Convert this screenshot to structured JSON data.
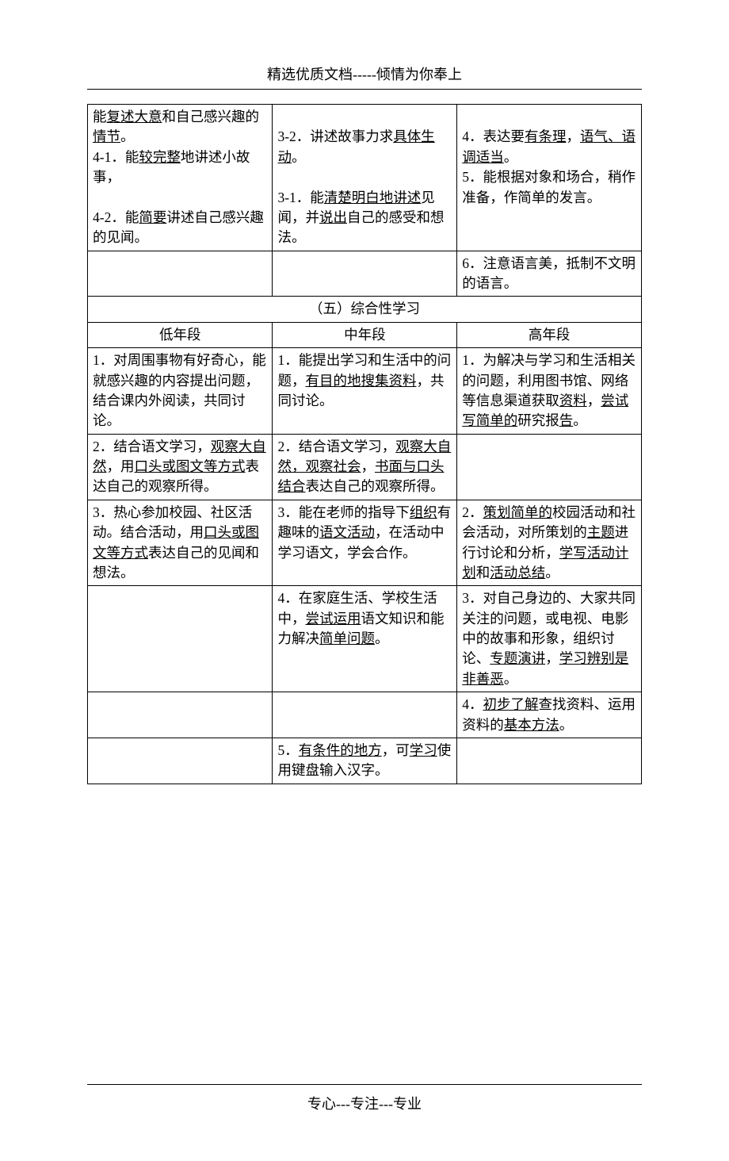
{
  "header": "精选优质文档-----倾情为你奉上",
  "footer": "专心---专注---专业",
  "table1": {
    "rows": [
      {
        "c1_parts": [
          {
            "t": "能",
            "u": false
          },
          {
            "t": "复述大意",
            "u": true
          },
          {
            "t": "和自己感兴趣的",
            "u": false
          },
          {
            "t": "情节",
            "u": true
          },
          {
            "t": "。",
            "u": false
          },
          {
            "t": "\n",
            "u": false
          },
          {
            "t": "4-1．能",
            "u": false
          },
          {
            "t": "较完整",
            "u": true
          },
          {
            "t": "地讲述小故事，",
            "u": false
          },
          {
            "t": "\n\n",
            "u": false
          },
          {
            "t": "4-2．能",
            "u": false
          },
          {
            "t": "简要",
            "u": true
          },
          {
            "t": "讲述自己感兴趣的见闻。",
            "u": false
          }
        ],
        "c2_parts": [
          {
            "t": "\n3-2．讲述故事力求",
            "u": false
          },
          {
            "t": "具体生动",
            "u": true
          },
          {
            "t": "。",
            "u": false
          },
          {
            "t": "\n\n",
            "u": false
          },
          {
            "t": "3-1．能",
            "u": false
          },
          {
            "t": "清楚明白地讲述",
            "u": true
          },
          {
            "t": "见闻，并",
            "u": false
          },
          {
            "t": "说出",
            "u": true
          },
          {
            "t": "自己的感受和想法。",
            "u": false
          }
        ],
        "c3_parts": [
          {
            "t": "\n4．表达要",
            "u": false
          },
          {
            "t": "有条理",
            "u": true
          },
          {
            "t": "，",
            "u": false
          },
          {
            "t": "语气、语调适当",
            "u": true
          },
          {
            "t": "。",
            "u": false
          },
          {
            "t": "\n",
            "u": false
          },
          {
            "t": "5．能根据对象和场合，稍作准备，作简单的发言。",
            "u": false
          }
        ]
      },
      {
        "c1_parts": [
          {
            "t": "",
            "u": false
          }
        ],
        "c2_parts": [
          {
            "t": "",
            "u": false
          }
        ],
        "c3_parts": [
          {
            "t": "6．注意语言美，抵制不文明的语言。",
            "u": false
          }
        ]
      }
    ]
  },
  "section5_title": "（五）综合性学习",
  "headers": {
    "low": "低年段",
    "mid": "中年段",
    "high": "高年段"
  },
  "table2": {
    "rows": [
      {
        "c1_parts": [
          {
            "t": "1．对周围事物有好奇心，能就感兴趣的内容提出问题，结合课内外阅读，共同讨论。",
            "u": false
          }
        ],
        "c2_parts": [
          {
            "t": "1．能提出学习和生活中的问题，",
            "u": false
          },
          {
            "t": "有目的地搜集资料",
            "u": true
          },
          {
            "t": "，共同讨论。",
            "u": false
          }
        ],
        "c3_parts": [
          {
            "t": "1．为解决与学习和生活相关的问题，利用图书馆、网络等信息渠道获取",
            "u": false
          },
          {
            "t": "资料",
            "u": true
          },
          {
            "t": "，",
            "u": false
          },
          {
            "t": "尝试写简单的",
            "u": true
          },
          {
            "t": "研究报",
            "u": false
          },
          {
            "t": "告",
            "u": true
          },
          {
            "t": "。",
            "u": false
          }
        ]
      },
      {
        "c1_parts": [
          {
            "t": "2．结合语文学习，",
            "u": false
          },
          {
            "t": "观察大自然",
            "u": true
          },
          {
            "t": "，用",
            "u": false
          },
          {
            "t": "口头或图文等方式",
            "u": true
          },
          {
            "t": "表达自己的观察所得。",
            "u": false
          }
        ],
        "c2_parts": [
          {
            "t": "2．结合语文学习，",
            "u": false
          },
          {
            "t": "观察大自然，观察社会",
            "u": true
          },
          {
            "t": "，",
            "u": false
          },
          {
            "t": "书面与口头结合",
            "u": true
          },
          {
            "t": "表达自己的观察所得。",
            "u": false
          }
        ],
        "c3_parts": [
          {
            "t": "",
            "u": false
          }
        ]
      },
      {
        "c1_parts": [
          {
            "t": "3．热心参加校园、社区活动。结合活动，用",
            "u": false
          },
          {
            "t": "口头或图文等方式",
            "u": true
          },
          {
            "t": "表达自己的见闻和想法。",
            "u": false
          }
        ],
        "c2_parts": [
          {
            "t": "3．能在老师的指导下",
            "u": false
          },
          {
            "t": "组织",
            "u": true
          },
          {
            "t": "有趣味的",
            "u": false
          },
          {
            "t": "语文活动",
            "u": true
          },
          {
            "t": "，在活动中学习语文，学会合作。",
            "u": false
          }
        ],
        "c3_parts": [
          {
            "t": "2．",
            "u": false
          },
          {
            "t": "策划简单的",
            "u": true
          },
          {
            "t": "校园活动和社会活动，对所策划的",
            "u": false
          },
          {
            "t": "主题",
            "u": true
          },
          {
            "t": "进行讨论和分析，",
            "u": false
          },
          {
            "t": "学写活动计划",
            "u": true
          },
          {
            "t": "和",
            "u": false
          },
          {
            "t": "活动总结",
            "u": true
          },
          {
            "t": "。",
            "u": false
          }
        ]
      },
      {
        "c1_parts": [
          {
            "t": "",
            "u": false
          }
        ],
        "c2_parts": [
          {
            "t": "4．在家庭生活、学校生活中，",
            "u": false
          },
          {
            "t": "尝试运用",
            "u": true
          },
          {
            "t": "语文知识和能力解决",
            "u": false
          },
          {
            "t": "简单问题",
            "u": true
          },
          {
            "t": "。",
            "u": false
          }
        ],
        "c3_parts": [
          {
            "t": "3．对自己身边的、大家共同关注的问题，或电视、电影中的故事和形象，组织讨论、",
            "u": false
          },
          {
            "t": "专题演讲",
            "u": true
          },
          {
            "t": "，",
            "u": false
          },
          {
            "t": "学习辨别是非善恶",
            "u": true
          },
          {
            "t": "。",
            "u": false
          }
        ]
      },
      {
        "c1_parts": [
          {
            "t": "",
            "u": false
          }
        ],
        "c2_parts": [
          {
            "t": "",
            "u": false
          }
        ],
        "c3_parts": [
          {
            "t": "4．",
            "u": false
          },
          {
            "t": "初步了解",
            "u": true
          },
          {
            "t": "查找资料、运用资料的",
            "u": false
          },
          {
            "t": "基本方法",
            "u": true
          },
          {
            "t": "。",
            "u": false
          }
        ]
      },
      {
        "c1_parts": [
          {
            "t": "",
            "u": false
          }
        ],
        "c2_parts": [
          {
            "t": "5．",
            "u": false
          },
          {
            "t": "有条件的地方",
            "u": true
          },
          {
            "t": "，可",
            "u": false
          },
          {
            "t": "学习",
            "u": true
          },
          {
            "t": "使用键盘输入汉字。",
            "u": false
          }
        ],
        "c3_parts": [
          {
            "t": "",
            "u": false
          }
        ]
      }
    ]
  }
}
